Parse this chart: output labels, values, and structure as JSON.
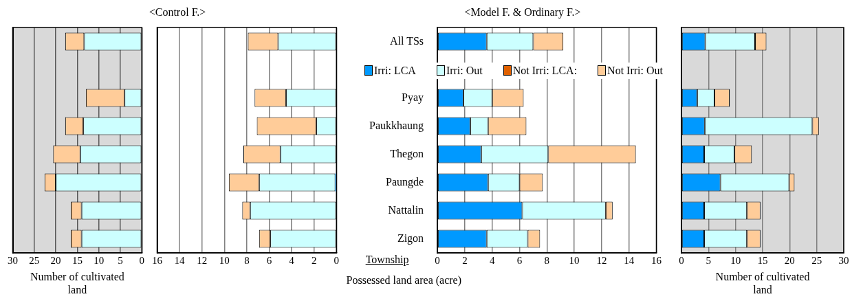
{
  "chart_data": [
    {
      "type": "bar",
      "orientation": "horizontal",
      "stacked": true,
      "xlabel": "Number of cultivated land",
      "categories": [
        null,
        null,
        null,
        null,
        null,
        null,
        null,
        null
      ],
      "xlim": [
        30,
        0
      ],
      "xticks": [
        30,
        25,
        20,
        15,
        10,
        5,
        0
      ],
      "grid": "x",
      "tick_labels": "x",
      "series": [
        {
          "color": "#ccffff",
          "values": [
            13.4,
            null,
            4.0,
            13.6,
            14.3,
            20.0,
            14.0,
            14.0
          ]
        },
        {
          "color": "#ffcc99",
          "values": [
            4.4,
            null,
            9.0,
            4.2,
            6.3,
            2.6,
            2.5,
            2.5
          ]
        }
      ]
    },
    {
      "type": "bar",
      "orientation": "horizontal",
      "stacked": true,
      "title": "<Control F.>",
      "categories": [
        null,
        null,
        null,
        null,
        null,
        null,
        null,
        null
      ],
      "xlim": [
        16,
        0
      ],
      "xticks": [
        16,
        14,
        12,
        10,
        8,
        6,
        4,
        2,
        0
      ],
      "grid": "x",
      "tick_labels": "x",
      "series": [
        {
          "color": "#0099ff",
          "values": [
            null,
            null,
            null,
            null,
            null,
            0.1,
            null,
            null
          ]
        },
        {
          "color": "#ccffff",
          "values": [
            5.2,
            null,
            4.5,
            1.8,
            5.0,
            6.8,
            7.7,
            5.9
          ]
        },
        {
          "color": "#ffcc99",
          "values": [
            2.7,
            null,
            2.8,
            5.3,
            3.3,
            2.7,
            0.7,
            1.0
          ]
        }
      ]
    },
    {
      "type": "bar",
      "orientation": "horizontal",
      "stacked": true,
      "title": "<Model F. & Ordinary F.>",
      "xlabel": "Possessed land area (acre)",
      "ylabel": "Township",
      "categories": [
        "All TSs",
        null,
        "Pyay",
        "Paukkhaung",
        "Thegon",
        "Paungde",
        "Nattalin",
        "Zigon"
      ],
      "xlim": [
        0,
        16
      ],
      "xticks": [
        0,
        2,
        4,
        6,
        8,
        10,
        12,
        14,
        16
      ],
      "grid": "x",
      "legend": "top",
      "series": [
        {
          "name": "Irri: LCA",
          "color": "#0099ff",
          "values": [
            3.6,
            null,
            1.9,
            2.4,
            3.2,
            3.7,
            6.2,
            3.6
          ]
        },
        {
          "name": "Irri: Out",
          "color": "#ccffff",
          "values": [
            3.4,
            null,
            2.1,
            1.3,
            4.9,
            2.3,
            6.1,
            3.0
          ]
        },
        {
          "name": "Not Irri: LCA:",
          "color": "#e06000",
          "values": [
            null,
            null,
            null,
            null,
            null,
            null,
            null,
            null
          ]
        },
        {
          "name": "Not Irri: Out",
          "color": "#ffcc99",
          "values": [
            2.2,
            null,
            2.3,
            2.8,
            6.4,
            1.7,
            0.5,
            0.9
          ]
        }
      ]
    },
    {
      "type": "bar",
      "orientation": "horizontal",
      "stacked": true,
      "xlabel": "Number of cultivated land",
      "categories": [
        null,
        null,
        null,
        null,
        null,
        null,
        null,
        null
      ],
      "xlim": [
        0,
        30
      ],
      "xticks": [
        0,
        5,
        10,
        15,
        20,
        25,
        30
      ],
      "grid": "x",
      "tick_labels": "x",
      "series": [
        {
          "color": "#0099ff",
          "values": [
            4.4,
            null,
            2.9,
            4.3,
            4.2,
            7.2,
            4.2,
            4.2
          ]
        },
        {
          "color": "#ccffff",
          "values": [
            9.2,
            null,
            3.2,
            19.9,
            5.6,
            12.7,
            7.9,
            7.9
          ]
        },
        {
          "color": "#ffcc99",
          "values": [
            2.1,
            null,
            2.8,
            1.2,
            3.2,
            1.0,
            2.5,
            2.5
          ]
        }
      ]
    }
  ]
}
